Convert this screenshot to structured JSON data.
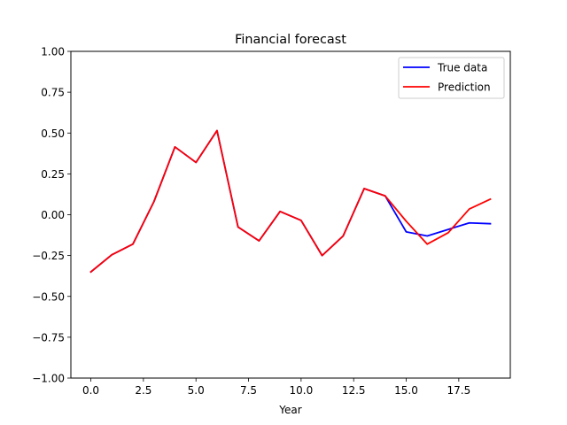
{
  "chart_data": {
    "type": "line",
    "title": "Financial forecast",
    "xlabel": "Year",
    "ylabel": "",
    "xlim": [
      -0.95,
      19.95
    ],
    "ylim": [
      -1.0,
      1.0
    ],
    "xticks": [
      0.0,
      2.5,
      5.0,
      7.5,
      10.0,
      12.5,
      15.0,
      17.5
    ],
    "xtick_labels": [
      "0.0",
      "2.5",
      "5.0",
      "7.5",
      "10.0",
      "12.5",
      "15.0",
      "17.5"
    ],
    "yticks": [
      -1.0,
      -0.75,
      -0.5,
      -0.25,
      0.0,
      0.25,
      0.5,
      0.75,
      1.0
    ],
    "ytick_labels": [
      "−1.00",
      "−0.75",
      "−0.50",
      "−0.25",
      "0.00",
      "0.25",
      "0.50",
      "0.75",
      "1.00"
    ],
    "grid": false,
    "legend_position": "top-right",
    "x": [
      0,
      1,
      2,
      3,
      4,
      5,
      6,
      7,
      8,
      9,
      10,
      11,
      12,
      13,
      14,
      15,
      16,
      17,
      18,
      19
    ],
    "series": [
      {
        "name": "True data",
        "color": "#0000ff",
        "values": [
          -0.35,
          -0.245,
          -0.18,
          0.08,
          0.415,
          0.32,
          0.515,
          -0.075,
          -0.16,
          0.02,
          -0.035,
          -0.25,
          -0.13,
          0.16,
          0.115,
          -0.105,
          -0.13,
          -0.09,
          -0.05,
          -0.055
        ]
      },
      {
        "name": "Prediction",
        "color": "#ff0000",
        "values": [
          -0.35,
          -0.245,
          -0.18,
          0.08,
          0.415,
          0.32,
          0.515,
          -0.075,
          -0.16,
          0.02,
          -0.035,
          -0.25,
          -0.13,
          0.16,
          0.115,
          -0.04,
          -0.18,
          -0.11,
          0.035,
          0.095
        ]
      }
    ]
  }
}
